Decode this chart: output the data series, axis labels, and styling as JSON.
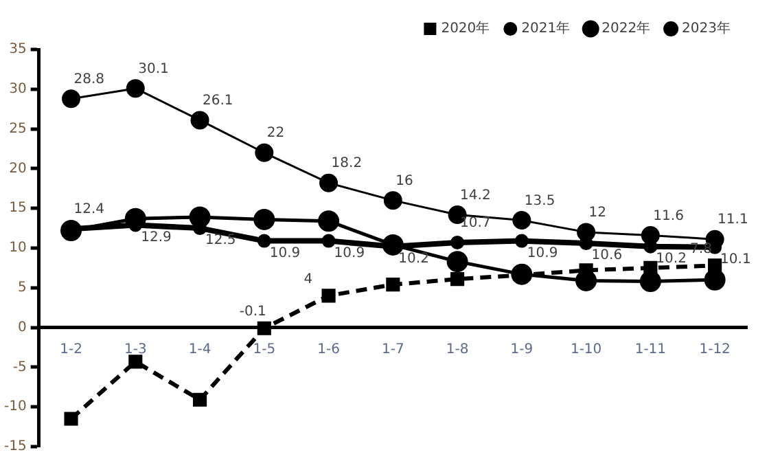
{
  "chart_data": {
    "type": "line",
    "categories": [
      "1-2",
      "1-3",
      "1-4",
      "1-5",
      "1-6",
      "1-7",
      "1-8",
      "1-9",
      "1-10",
      "1-11",
      "1-12"
    ],
    "ylim": [
      -15,
      35
    ],
    "yticks": [
      -15,
      -10,
      -5,
      0,
      5,
      10,
      15,
      20,
      25,
      30,
      35
    ],
    "grid": false,
    "legend": "top right",
    "series": [
      {
        "name": "2020年",
        "color": "#000000",
        "marker": "square",
        "line_style": "dashed",
        "values": [
          -11.5,
          -4.3,
          -9.1,
          -0.1,
          4,
          5.4,
          6.1,
          6.6,
          7.2,
          7.5,
          7.8
        ],
        "value_labels": [
          null,
          null,
          null,
          "-0.1",
          "4",
          null,
          null,
          null,
          null,
          null,
          "7.8"
        ]
      },
      {
        "name": "2021年",
        "color": "#000000",
        "marker": "circle",
        "line_style": "solid",
        "values": [
          28.8,
          30.1,
          26.1,
          22,
          18.2,
          16,
          14.2,
          13.5,
          12,
          11.6,
          11.1
        ],
        "value_labels": [
          "28.8",
          "30.1",
          "26.1",
          "22",
          "18.2",
          "16",
          "14.2",
          "13.5",
          "12",
          "11.6",
          "11.1"
        ]
      },
      {
        "name": "2022年",
        "color": "#000000",
        "marker": "circle",
        "line_style": "solid",
        "values": [
          12.4,
          12.9,
          12.5,
          10.9,
          10.9,
          10.2,
          10.7,
          10.9,
          10.6,
          10.2,
          10.1
        ],
        "value_labels": [
          "12.4",
          "12.9",
          "12.5",
          "10.9",
          "10.9",
          "10.2",
          "10.7",
          "10.9",
          "10.6",
          "10.2",
          "10.1"
        ]
      },
      {
        "name": "2023年",
        "color": "#000000",
        "marker": "circle",
        "line_style": "solid",
        "values": [
          12.2,
          13.7,
          13.9,
          13.6,
          13.4,
          10.4,
          8.3,
          6.7,
          5.9,
          5.8,
          6.0
        ]
      }
    ]
  }
}
